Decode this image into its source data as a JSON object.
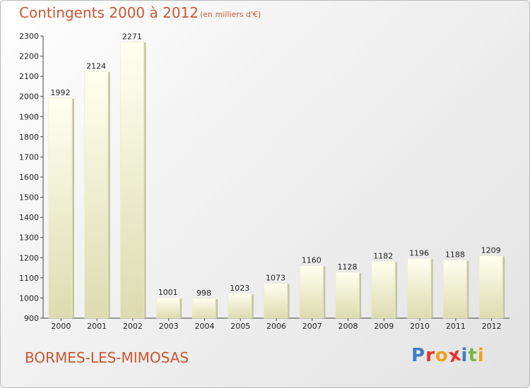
{
  "header": {
    "title": "Contingents 2000 à 2012",
    "subtitle": "(en milliers d'€)"
  },
  "footer": {
    "place": "BORMES-LES-MIMOSAS",
    "brand": "Proxiti",
    "brand_colors": [
      "#3b7fc4",
      "#e5332a",
      "#f0a020",
      "#e5332a",
      "#3b7fc4",
      "#7ab648",
      "#f0a020"
    ]
  },
  "colors": {
    "title": "#c9572f",
    "bar_top": "#fffff0",
    "bar_bottom": "#dcdcb0",
    "bar_side": "#c8c8a0"
  },
  "chart_data": {
    "type": "bar",
    "title": "Contingents 2000 à 2012",
    "subtitle": "(en milliers d'€)",
    "categories": [
      "2000",
      "2001",
      "2002",
      "2003",
      "2004",
      "2005",
      "2006",
      "2007",
      "2008",
      "2009",
      "2010",
      "2011",
      "2012"
    ],
    "values": [
      1992,
      2124,
      2271,
      1001,
      998,
      1023,
      1073,
      1160,
      1128,
      1182,
      1196,
      1188,
      1209
    ],
    "ylim": [
      900,
      2300
    ],
    "yticks": [
      900,
      1000,
      1100,
      1200,
      1300,
      1400,
      1500,
      1600,
      1700,
      1800,
      1900,
      2000,
      2100,
      2200,
      2300
    ],
    "xlabel": "",
    "ylabel": "",
    "grid": false,
    "data_labels": true
  }
}
